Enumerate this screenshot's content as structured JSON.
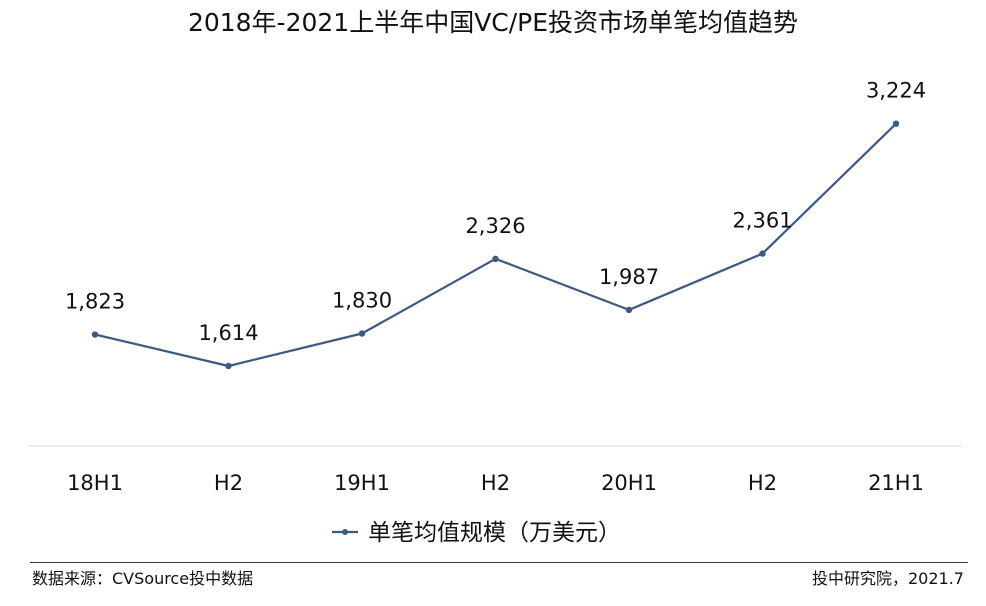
{
  "chart_data": {
    "type": "line",
    "title": "2018年-2021上半年中国VC/PE投资市场单笔均值趋势",
    "categories": [
      "18H1",
      "H2",
      "19H1",
      "H2",
      "20H1",
      "H2",
      "21H1"
    ],
    "series": [
      {
        "name": "单笔均值规模（万美元）",
        "values": [
          1823,
          1614,
          1830,
          2326,
          1987,
          2361,
          3224
        ],
        "labels": [
          "1,823",
          "1,614",
          "1,830",
          "2,326",
          "1,987",
          "2,361",
          "3,224"
        ]
      }
    ],
    "xlabel": "",
    "ylabel": "",
    "grid": false,
    "legend": "bottom",
    "colors": {
      "line": "#3d5a80",
      "axis": "#d9d9d9"
    }
  },
  "footer": {
    "source": "数据来源：CVSource投中数据",
    "credit": "投中研究院，2021.7"
  }
}
